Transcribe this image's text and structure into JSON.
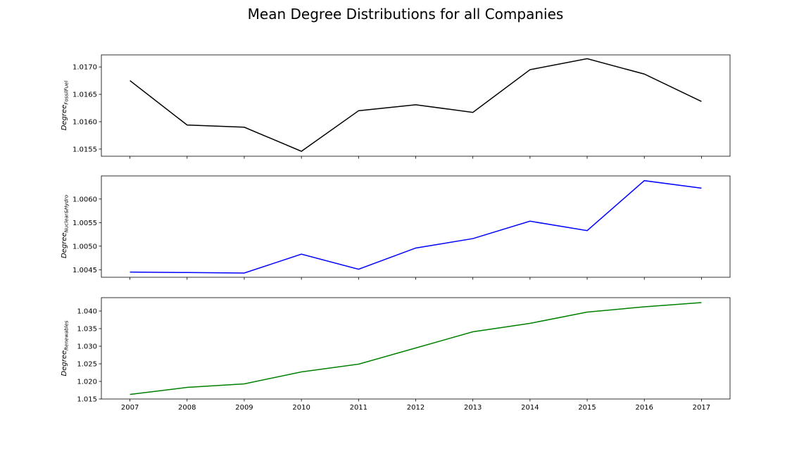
{
  "chart_data": {
    "type": "line",
    "title": "Mean Degree Distributions for all Companies",
    "x": [
      2007,
      2008,
      2009,
      2010,
      2011,
      2012,
      2013,
      2014,
      2015,
      2016,
      2017
    ],
    "x_tick_labels": [
      "2007",
      "2008",
      "2009",
      "2010",
      "2011",
      "2012",
      "2013",
      "2014",
      "2015",
      "2016",
      "2017"
    ],
    "xlim": [
      2006.5,
      2017.5
    ],
    "grid": false,
    "subplots": [
      {
        "ylabel_base": "Degree",
        "ylabel_sub": "FossilFuel",
        "color": "#000000",
        "ylim": [
          1.01537,
          1.01722
        ],
        "yticks": [
          1.0155,
          1.016,
          1.0165,
          1.017
        ],
        "ytick_labels": [
          "1.0155",
          "1.0160",
          "1.0165",
          "1.0170"
        ],
        "values": [
          1.01675,
          1.01594,
          1.0159,
          1.01546,
          1.0162,
          1.01631,
          1.01617,
          1.01695,
          1.01715,
          1.01687,
          1.01637
        ]
      },
      {
        "ylabel_base": "Degree",
        "ylabel_sub": "Nuclear&Hydro",
        "color": "#0000ff",
        "ylim": [
          1.00434,
          1.00649
        ],
        "yticks": [
          1.0045,
          1.005,
          1.0055,
          1.006
        ],
        "ytick_labels": [
          "1.0045",
          "1.0050",
          "1.0055",
          "1.0060"
        ],
        "values": [
          1.00445,
          1.00444,
          1.00443,
          1.00483,
          1.00451,
          1.00496,
          1.00516,
          1.00553,
          1.00533,
          1.00639,
          1.00623
        ]
      },
      {
        "ylabel_base": "Degree",
        "ylabel_sub": "Renewables",
        "color": "#008000",
        "ylim": [
          1.015,
          1.0438
        ],
        "yticks": [
          1.015,
          1.02,
          1.025,
          1.03,
          1.035,
          1.04
        ],
        "ytick_labels": [
          "1.015",
          "1.020",
          "1.025",
          "1.030",
          "1.035",
          "1.040"
        ],
        "values": [
          1.0163,
          1.0183,
          1.0193,
          1.0227,
          1.0249,
          1.0295,
          1.0341,
          1.0365,
          1.0397,
          1.0412,
          1.0424
        ]
      }
    ]
  }
}
